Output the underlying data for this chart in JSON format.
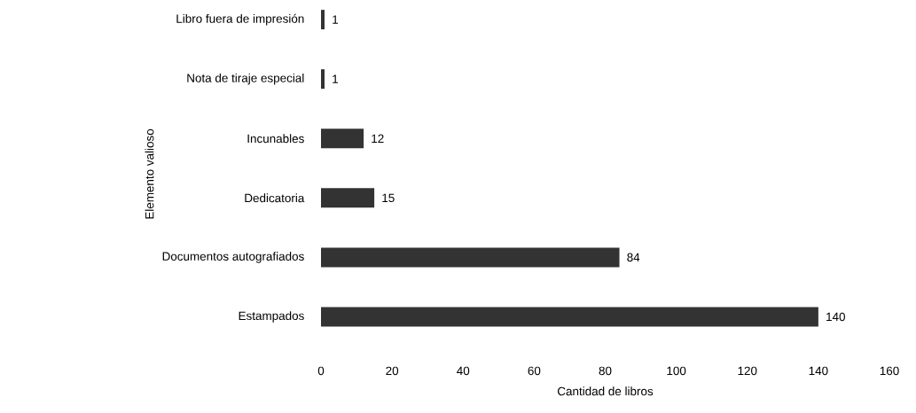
{
  "chart_data": {
    "type": "bar",
    "orientation": "horizontal",
    "xlabel": "Cantidad de libros",
    "ylabel": "Elemento valioso",
    "categories": [
      "Libro fuera de impresión",
      "Nota de tiraje especial",
      "Incunables",
      "Dedicatoria",
      "Documentos autografiados",
      "Estampados"
    ],
    "values": [
      1,
      1,
      12,
      15,
      84,
      140
    ],
    "color": "#333333",
    "xlim": [
      0,
      160
    ],
    "xticks": [
      0,
      20,
      40,
      60,
      80,
      100,
      120,
      140,
      160
    ],
    "data_labels": true,
    "grid": false
  }
}
